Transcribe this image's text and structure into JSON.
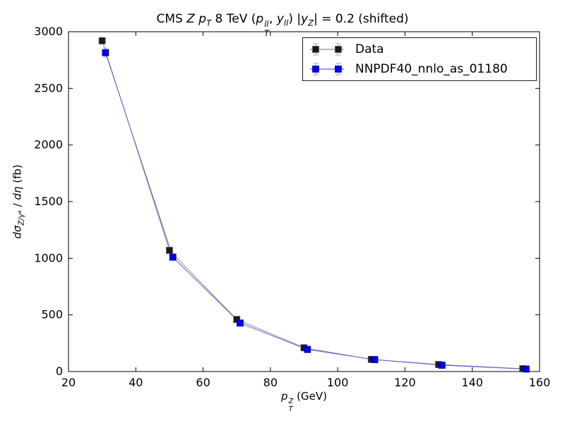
{
  "chart_data": {
    "type": "scatter",
    "title": "CMS Z p_T 8 TeV (p_T^{ll}, y_{ll}) |y_Z| = 0.2 (shifted)",
    "xlabel": "p_T^Z (GeV)",
    "ylabel": "dσ_{Z/γ*} / dη (fb)",
    "xlim": [
      20,
      160
    ],
    "ylim": [
      0,
      3000
    ],
    "xticks": [
      20,
      40,
      60,
      80,
      100,
      120,
      140,
      160
    ],
    "yticks": [
      0,
      500,
      1000,
      1500,
      2000,
      2500,
      3000
    ],
    "grid": false,
    "legend_position": "upper right",
    "series": [
      {
        "name": "Data",
        "marker": "square",
        "color": "#1a1a1a",
        "edge_color": "#555555",
        "line_color": "#8a8a8a",
        "err_color": "#aaaaaa",
        "x": [
          30,
          50,
          70,
          90,
          110,
          130,
          155
        ],
        "y": [
          2920,
          1070,
          460,
          210,
          107,
          62,
          25
        ],
        "yerr": [
          30,
          12,
          6,
          3,
          2,
          1.5,
          1
        ]
      },
      {
        "name": "NNPDF40_nnlo_as_01180",
        "marker": "square",
        "color": "#0000ee",
        "edge_color": "#000088",
        "line_color": "#5c5cdd",
        "err_color": "#9e9ee8",
        "x": [
          31,
          51,
          71,
          91,
          111,
          131,
          156
        ],
        "y": [
          2815,
          1010,
          428,
          195,
          105,
          56,
          22
        ],
        "yerr": [
          40,
          15,
          7,
          3.5,
          2,
          1.5,
          1
        ]
      }
    ]
  },
  "title_parts": {
    "t1": "CMS ",
    "z": "Z ",
    "p1": "p",
    "p1sub": "T",
    "t2": " 8 TeV (",
    "p2": "p",
    "p2sup": "ll",
    "p2sub": "T",
    "t3": ", ",
    "y1": "y",
    "y1sub": "ll",
    "t4": ") |",
    "y2": "y",
    "y2sub": "Z",
    "t5": "| = 0.2 (shifted)"
  },
  "xlabel_parts": {
    "p": "p",
    "sup": "Z",
    "sub": "T",
    "unit": " (GeV)"
  },
  "ylabel_parts": {
    "d1": "dσ",
    "d1sub": "Z/γ*",
    "slash": " / ",
    "d2": "dη",
    "unit": " (fb)"
  },
  "legend": {
    "entries": [
      "Data",
      "NNPDF40_nnlo_as_01180"
    ]
  }
}
